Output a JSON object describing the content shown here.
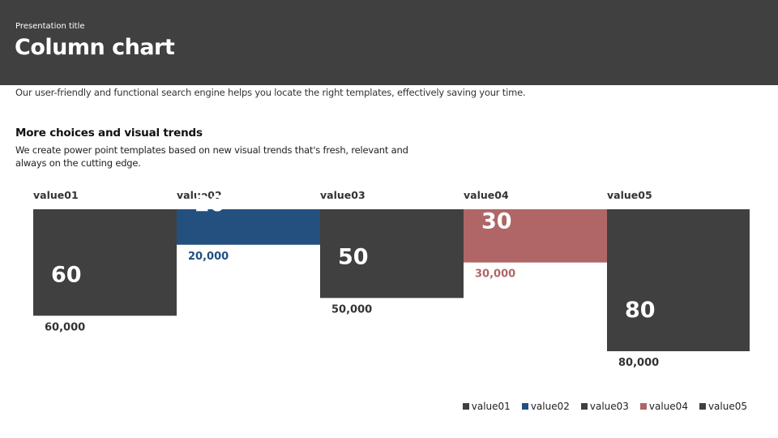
{
  "header": {
    "presentation_title": "Presentation title",
    "title": "Column chart"
  },
  "intro_text": "Our user-friendly and functional search engine helps you locate the right templates, effectively saving your time.",
  "section": {
    "heading": "More choices and visual trends",
    "body": "We create power point templates based on new visual trends that's fresh, relevant and always on the cutting edge."
  },
  "colors": {
    "header_bg": "#404040",
    "dark": "#404040",
    "blue": "#23507f",
    "rose": "#b06666"
  },
  "chart_data": {
    "type": "bar",
    "categories": [
      "value01",
      "value02",
      "value03",
      "value04",
      "value05"
    ],
    "values": [
      60,
      20,
      50,
      30,
      80
    ],
    "value_labels": [
      "60",
      "20",
      "50",
      "30",
      "80"
    ],
    "secondary_labels": [
      "60,000",
      "20,000",
      "50,000",
      "30,000",
      "80,000"
    ],
    "colors": [
      "#404040",
      "#23507f",
      "#404040",
      "#b06666",
      "#404040"
    ],
    "label_colors": [
      "#333333",
      "#23507f",
      "#333333",
      "#b06666",
      "#333333"
    ],
    "ylim": [
      0,
      80
    ],
    "orientation": "bars hang from top",
    "legend": {
      "position": "bottom-right",
      "entries": [
        "value01",
        "value02",
        "value03",
        "value04",
        "value05"
      ]
    }
  }
}
